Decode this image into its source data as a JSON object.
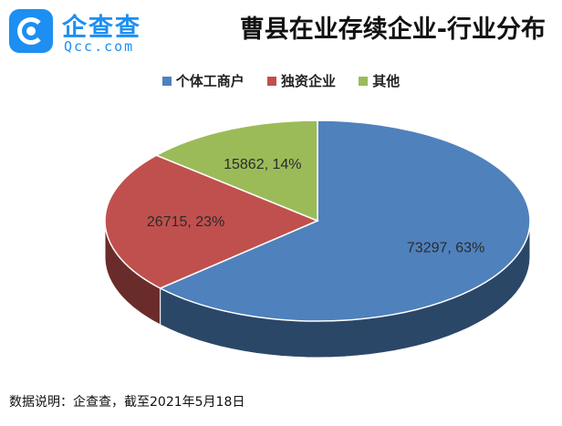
{
  "brand": {
    "name": "企查查",
    "domain": "Qcc.com"
  },
  "source_note": "数据说明：企查查，截至2021年5月18日",
  "chart_data": {
    "type": "pie",
    "title": "曹县在业存续企业-行业分布",
    "legend_position": "top",
    "slices": [
      {
        "label": "个体工商户",
        "value": 73297,
        "percent": "63%",
        "color": "#4f81bd"
      },
      {
        "label": "独资企业",
        "value": 26715,
        "percent": "23%",
        "color": "#c0504d"
      },
      {
        "label": "其他",
        "value": 15862,
        "percent": "14%",
        "color": "#9bbb59"
      }
    ]
  }
}
